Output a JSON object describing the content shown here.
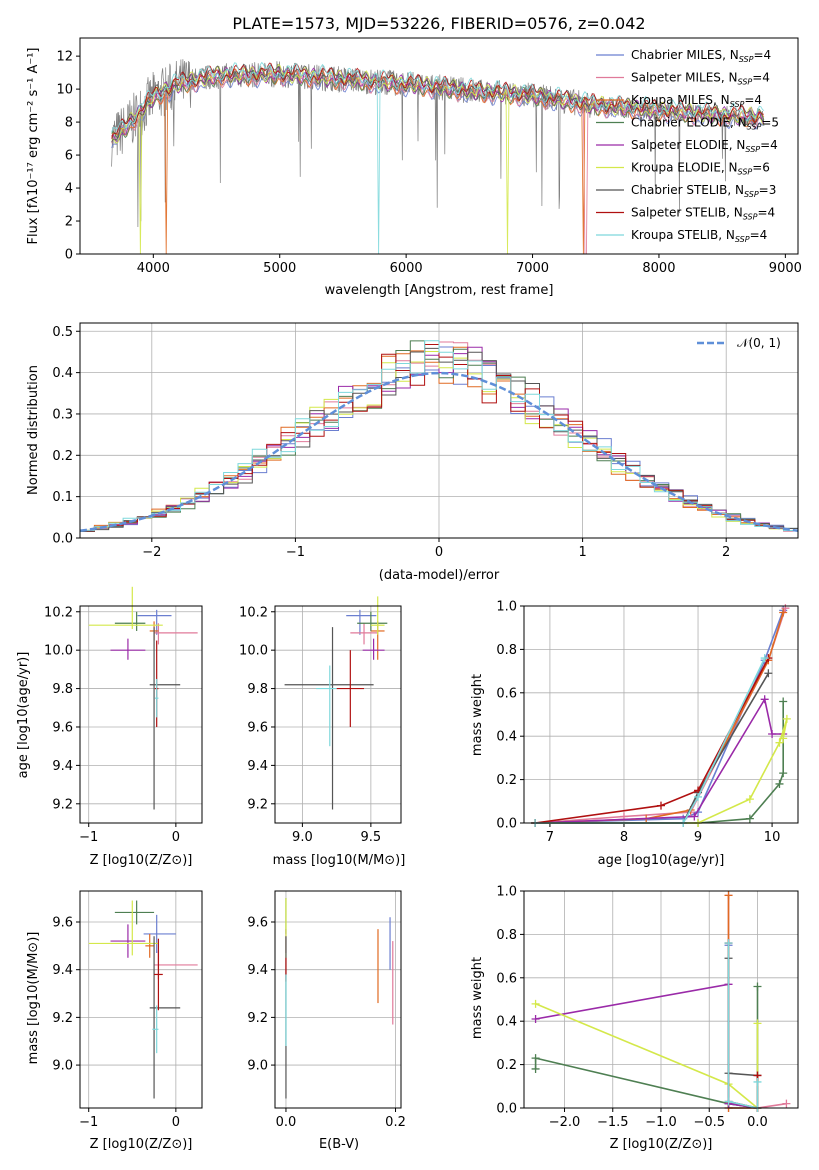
{
  "colors": {
    "Chabrier MILES": "#6b7fd0",
    "Salpeter MILES": "#e07a9a",
    "Kroupa MILES": "#e06a22",
    "Chabrier ELODIE": "#4e7f52",
    "Salpeter ELODIE": "#9a2aa8",
    "Kroupa ELODIE": "#d4e84a",
    "Chabrier STELIB": "#555555",
    "Salpeter STELIB": "#b01010",
    "Kroupa STELIB": "#7ed8dc",
    "normal": "#5f8fd8"
  },
  "spectrum_plot": {
    "title": "PLATE=1573, MJD=53226, FIBERID=0576, z=0.042",
    "xlabel": "wavelength [Angstrom, rest frame]",
    "ylabel": "Flux [fλ10⁻¹⁷ erg cm⁻² s⁻¹ A⁻¹]",
    "xticks": [
      4000,
      5000,
      6000,
      7000,
      8000,
      9000
    ],
    "yticks": [
      0,
      2,
      4,
      6,
      8,
      10,
      12
    ],
    "legend": [
      "Chabrier MILES, N_SSP=4",
      "Salpeter MILES, N_SSP=4",
      "Kroupa MILES, N_SSP=4",
      "Chabrier ELODIE, N_SSP=5",
      "Salpeter ELODIE, N_SSP=4",
      "Kroupa ELODIE, N_SSP=6",
      "Chabrier STELIB, N_SSP=3",
      "Salpeter STELIB, N_SSP=4",
      "Kroupa STELIB, N_SSP=4"
    ],
    "legend_position": "top-right"
  },
  "residual_plot": {
    "xlabel": "(data-model)/error",
    "ylabel": "Normed distribution",
    "xticks": [
      -2,
      -1,
      0,
      1,
      2
    ],
    "yticks": [
      0.0,
      0.1,
      0.2,
      0.3,
      0.4,
      0.5
    ],
    "legend": "𝒩(0, 1)",
    "legend_position": "top-right"
  },
  "panel_age_z": {
    "xlabel": "Z [log10(Z/Z⊙)]",
    "ylabel": "age  [log10(age/yr)]",
    "xticks": [
      -1,
      0
    ],
    "yticks": [
      9.2,
      9.4,
      9.6,
      9.8,
      10.0,
      10.2
    ]
  },
  "panel_age_mass": {
    "xlabel": "mass [log10(M/M⊙)]",
    "xticks": [
      9.0,
      9.5
    ],
    "yticks": [
      9.2,
      9.4,
      9.6,
      9.8,
      10.0,
      10.2
    ]
  },
  "panel_weight_age": {
    "xlabel": "age  [log10(age/yr)]",
    "ylabel": "mass weight",
    "xticks": [
      7,
      8,
      9,
      10
    ],
    "yticks": [
      0.0,
      0.2,
      0.4,
      0.6,
      0.8,
      1.0
    ]
  },
  "panel_mass_z": {
    "xlabel": "Z [log10(Z/Z⊙)]",
    "ylabel": "mass [log10(M/M⊙)]",
    "xticks": [
      -1,
      0
    ],
    "yticks": [
      9.0,
      9.2,
      9.4,
      9.6
    ]
  },
  "panel_mass_ebv": {
    "xlabel": "E(B-V)",
    "xticks": [
      0.0,
      0.2
    ],
    "yticks": [
      9.0,
      9.2,
      9.4,
      9.6
    ]
  },
  "panel_weight_z": {
    "xlabel": "Z [log10(Z/Z⊙)]",
    "ylabel": "mass weight",
    "xticks": [
      -2.0,
      -1.5,
      -1.0,
      -0.5,
      0.0
    ],
    "yticks": [
      0.0,
      0.2,
      0.4,
      0.6,
      0.8,
      1.0
    ]
  },
  "chart_data": [
    {
      "type": "line",
      "title": "PLATE=1573, MJD=53226, FIBERID=0576, z=0.042",
      "xlabel": "wavelength [Angstrom, rest frame]",
      "xlim": [
        3420,
        9100
      ],
      "ylim": [
        0,
        13.1
      ],
      "grid": false,
      "continuum_approx": {
        "x": [
          3670,
          3800,
          4000,
          4200,
          4500,
          5000,
          5500,
          6000,
          6500,
          7000,
          7500,
          8000,
          8500,
          8830
        ],
        "y": [
          6.9,
          7.8,
          9.5,
          10.3,
          10.8,
          10.9,
          10.6,
          10.3,
          9.9,
          9.6,
          9.0,
          8.7,
          8.4,
          8.3
        ]
      },
      "series_order": [
        "Chabrier MILES",
        "Salpeter MILES",
        "Kroupa MILES",
        "Chabrier ELODIE",
        "Salpeter ELODIE",
        "Kroupa ELODIE",
        "Chabrier STELIB",
        "Salpeter STELIB",
        "Kroupa STELIB"
      ]
    },
    {
      "type": "line",
      "xlabel": "(data-model)/error",
      "ylabel": "Normed distribution",
      "xlim": [
        -2.5,
        2.5
      ],
      "ylim": [
        0,
        0.52
      ],
      "grid": true,
      "normal": {
        "mean": 0,
        "sigma": 1,
        "style": "dashed"
      },
      "histogram_bin_width": 0.1
    },
    {
      "type": "scatter",
      "xlabel": "Z [log10(Z/Z⊙)]",
      "ylabel": "age  [log10(age/yr)]",
      "xlim": [
        -1.1,
        0.3
      ],
      "ylim": [
        9.1,
        10.23
      ],
      "grid": true,
      "points": [
        {
          "name": "Chabrier MILES",
          "x": -0.22,
          "y": 10.18,
          "xerr": [
            0.22,
            0.17
          ],
          "yerr": [
            0.1,
            0.03
          ]
        },
        {
          "name": "Salpeter MILES",
          "x": -0.2,
          "y": 10.09,
          "xerr": [
            0.05,
            0.45
          ],
          "yerr": [
            0.06,
            0.05
          ]
        },
        {
          "name": "Kroupa MILES",
          "x": -0.25,
          "y": 10.1,
          "xerr": [
            0.05,
            0.05
          ],
          "yerr": [
            0.05,
            0.05
          ]
        },
        {
          "name": "Chabrier ELODIE",
          "x": -0.45,
          "y": 10.14,
          "xerr": [
            0.25,
            0.1
          ],
          "yerr": [
            0.04,
            0.06
          ]
        },
        {
          "name": "Salpeter ELODIE",
          "x": -0.55,
          "y": 10.0,
          "xerr": [
            0.2,
            0.2
          ],
          "yerr": [
            0.05,
            0.06
          ]
        },
        {
          "name": "Kroupa ELODIE",
          "x": -0.5,
          "y": 10.13,
          "xerr": [
            0.5,
            0.35
          ],
          "yerr": [
            0.02,
            0.2
          ]
        },
        {
          "name": "Chabrier STELIB",
          "x": -0.25,
          "y": 9.82,
          "xerr": [
            0.05,
            0.3
          ],
          "yerr": [
            0.65,
            0.3
          ]
        },
        {
          "name": "Salpeter STELIB",
          "x": -0.22,
          "y": 9.8,
          "xerr": [
            0.02,
            0.02
          ],
          "yerr": [
            0.2,
            0.25
          ]
        },
        {
          "name": "Kroupa STELIB",
          "x": -0.22,
          "y": 9.75,
          "xerr": [
            0.02,
            0.02
          ],
          "yerr": [
            0.1,
            0.1
          ]
        }
      ]
    },
    {
      "type": "scatter",
      "xlabel": "mass [log10(M/M⊙)]",
      "xlim": [
        8.8,
        9.72
      ],
      "ylim": [
        9.1,
        10.23
      ],
      "grid": true,
      "points": [
        {
          "name": "Chabrier MILES",
          "x": 9.42,
          "y": 10.18,
          "xerr": [
            0.1,
            0.12
          ],
          "yerr": [
            0.1,
            0.03
          ]
        },
        {
          "name": "Salpeter MILES",
          "x": 9.45,
          "y": 10.09,
          "xerr": [
            0.1,
            0.1
          ],
          "yerr": [
            0.06,
            0.05
          ]
        },
        {
          "name": "Kroupa MILES",
          "x": 9.55,
          "y": 10.1,
          "xerr": [
            0.05,
            0.05
          ],
          "yerr": [
            0.15,
            0.05
          ]
        },
        {
          "name": "Chabrier ELODIE",
          "x": 9.5,
          "y": 10.14,
          "xerr": [
            0.1,
            0.12
          ],
          "yerr": [
            0.04,
            0.06
          ]
        },
        {
          "name": "Salpeter ELODIE",
          "x": 9.52,
          "y": 10.0,
          "xerr": [
            0.08,
            0.08
          ],
          "yerr": [
            0.05,
            0.06
          ]
        },
        {
          "name": "Kroupa ELODIE",
          "x": 9.55,
          "y": 10.13,
          "xerr": [
            0.05,
            0.05
          ],
          "yerr": [
            0.05,
            0.15
          ]
        },
        {
          "name": "Chabrier STELIB",
          "x": 9.22,
          "y": 9.82,
          "xerr": [
            0.35,
            0.3
          ],
          "yerr": [
            0.65,
            0.3
          ]
        },
        {
          "name": "Salpeter STELIB",
          "x": 9.35,
          "y": 9.8,
          "xerr": [
            0.1,
            0.1
          ],
          "yerr": [
            0.2,
            0.2
          ]
        },
        {
          "name": "Kroupa STELIB",
          "x": 9.2,
          "y": 9.8,
          "xerr": [
            0.1,
            0.05
          ],
          "yerr": [
            0.3,
            0.12
          ]
        }
      ]
    },
    {
      "type": "line",
      "xlabel": "age  [log10(age/yr)]",
      "ylabel": "mass weight",
      "xlim": [
        6.65,
        10.35
      ],
      "ylim": [
        0,
        1.0
      ],
      "grid": true,
      "series": [
        {
          "name": "Chabrier MILES",
          "x": [
            6.8,
            8.8,
            9.0,
            9.9,
            10.15
          ],
          "y": [
            0.0,
            0.02,
            0.05,
            0.75,
            0.98
          ]
        },
        {
          "name": "Salpeter MILES",
          "x": [
            6.8,
            8.0,
            8.9,
            9.95,
            10.18
          ],
          "y": [
            0.0,
            0.03,
            0.05,
            0.75,
            0.99
          ]
        },
        {
          "name": "Kroupa MILES",
          "x": [
            6.8,
            8.3,
            8.9,
            9.95,
            10.15
          ],
          "y": [
            0.0,
            0.02,
            0.06,
            0.75,
            0.97
          ]
        },
        {
          "name": "Chabrier ELODIE",
          "x": [
            6.8,
            9.0,
            9.7,
            10.1,
            10.15,
            10.15
          ],
          "y": [
            0.0,
            0.0,
            0.02,
            0.18,
            0.23,
            0.56
          ]
        },
        {
          "name": "Salpeter ELODIE",
          "x": [
            6.8,
            8.95,
            9.9,
            10.0,
            10.15
          ],
          "y": [
            0.0,
            0.03,
            0.57,
            0.41,
            0.41
          ]
        },
        {
          "name": "Kroupa ELODIE",
          "x": [
            6.8,
            9.0,
            9.7,
            10.1,
            10.2,
            10.15
          ],
          "y": [
            0.0,
            0.0,
            0.11,
            0.37,
            0.48,
            0.39
          ]
        },
        {
          "name": "Chabrier STELIB",
          "x": [
            6.8,
            8.8,
            9.0,
            9.95
          ],
          "y": [
            0.0,
            0.0,
            0.14,
            0.69
          ]
        },
        {
          "name": "Salpeter STELIB",
          "x": [
            6.8,
            8.5,
            9.0,
            9.95
          ],
          "y": [
            0.0,
            0.08,
            0.15,
            0.76
          ]
        },
        {
          "name": "Kroupa STELIB",
          "x": [
            6.8,
            8.8,
            9.0,
            9.9
          ],
          "y": [
            0.0,
            0.0,
            0.12,
            0.76
          ]
        }
      ]
    },
    {
      "type": "scatter",
      "xlabel": "Z [log10(Z/Z⊙)]",
      "ylabel": "mass [log10(M/M⊙)]",
      "xlim": [
        -1.1,
        0.3
      ],
      "ylim": [
        8.82,
        9.73
      ],
      "grid": true,
      "points": [
        {
          "name": "Chabrier MILES",
          "x": -0.22,
          "y": 9.55,
          "xerr": [
            0.15,
            0.22
          ],
          "yerr": [
            0.08,
            0.08
          ]
        },
        {
          "name": "Salpeter MILES",
          "x": -0.2,
          "y": 9.42,
          "xerr": [
            0.05,
            0.45
          ],
          "yerr": [
            0.06,
            0.06
          ]
        },
        {
          "name": "Kroupa MILES",
          "x": -0.3,
          "y": 9.5,
          "xerr": [
            0.05,
            0.05
          ],
          "yerr": [
            0.05,
            0.05
          ]
        },
        {
          "name": "Chabrier ELODIE",
          "x": -0.45,
          "y": 9.64,
          "xerr": [
            0.25,
            0.2
          ],
          "yerr": [
            0.05,
            0.05
          ]
        },
        {
          "name": "Salpeter ELODIE",
          "x": -0.55,
          "y": 9.52,
          "xerr": [
            0.2,
            0.2
          ],
          "yerr": [
            0.07,
            0.07
          ]
        },
        {
          "name": "Kroupa ELODIE",
          "x": -0.5,
          "y": 9.51,
          "xerr": [
            0.5,
            0.3
          ],
          "yerr": [
            0.05,
            0.18
          ]
        },
        {
          "name": "Chabrier STELIB",
          "x": -0.25,
          "y": 9.24,
          "xerr": [
            0.05,
            0.3
          ],
          "yerr": [
            0.38,
            0.3
          ]
        },
        {
          "name": "Salpeter STELIB",
          "x": -0.2,
          "y": 9.38,
          "xerr": [
            0.05,
            0.05
          ],
          "yerr": [
            0.15,
            0.15
          ]
        },
        {
          "name": "Kroupa STELIB",
          "x": -0.22,
          "y": 9.15,
          "xerr": [
            0.05,
            0.02
          ],
          "yerr": [
            0.1,
            0.1
          ]
        }
      ]
    },
    {
      "type": "scatter",
      "xlabel": "E(B-V)",
      "xlim": [
        -0.02,
        0.21
      ],
      "ylim": [
        8.82,
        9.73
      ],
      "grid": true,
      "points": [
        {
          "name": "Chabrier MILES",
          "x": 0.19,
          "y": 9.52,
          "yerr": [
            0.12,
            0.1
          ]
        },
        {
          "name": "Salpeter MILES",
          "x": 0.195,
          "y": 9.37,
          "yerr": [
            0.2,
            0.15
          ]
        },
        {
          "name": "Kroupa MILES",
          "x": 0.168,
          "y": 9.42,
          "yerr": [
            0.16,
            0.15
          ]
        },
        {
          "name": "Chabrier ELODIE",
          "x": 0.0,
          "y": 9.6,
          "yerr": [
            0.05,
            0.1
          ]
        },
        {
          "name": "Salpeter ELODIE",
          "x": 0.0,
          "y": 9.52,
          "yerr": [
            0.05,
            0.05
          ]
        },
        {
          "name": "Kroupa ELODIE",
          "x": 0.0,
          "y": 9.55,
          "yerr": [
            0.1,
            0.15
          ]
        },
        {
          "name": "Chabrier STELIB",
          "x": 0.0,
          "y": 9.24,
          "yerr": [
            0.38,
            0.3
          ]
        },
        {
          "name": "Salpeter STELIB",
          "x": 0.0,
          "y": 9.4,
          "yerr": [
            0.05,
            0.05
          ]
        },
        {
          "name": "Kroupa STELIB",
          "x": 0.0,
          "y": 9.18,
          "yerr": [
            0.1,
            0.2
          ]
        }
      ]
    },
    {
      "type": "line",
      "xlabel": "Z [log10(Z/Z⊙)]",
      "ylabel": "mass weight",
      "xlim": [
        -2.42,
        0.42
      ],
      "ylim": [
        0,
        1.0
      ],
      "grid": true,
      "series": [
        {
          "name": "Chabrier MILES",
          "x": [
            -0.3,
            -0.3,
            0.0
          ],
          "y": [
            0.75,
            0.02,
            0.0
          ]
        },
        {
          "name": "Salpeter MILES",
          "x": [
            -0.3,
            -0.3,
            0.0,
            0.3
          ],
          "y": [
            0.98,
            0.0,
            0.0,
            0.02
          ]
        },
        {
          "name": "Kroupa MILES",
          "x": [
            -0.3,
            -0.3,
            0.0
          ],
          "y": [
            0.98,
            0.0,
            0.0
          ]
        },
        {
          "name": "Chabrier ELODIE",
          "x": [
            -2.3,
            -2.3,
            -0.3,
            0.0,
            0.0
          ],
          "y": [
            0.18,
            0.23,
            0.02,
            0.0,
            0.56
          ]
        },
        {
          "name": "Salpeter ELODIE",
          "x": [
            -2.3,
            -0.3,
            -0.3,
            0.0
          ],
          "y": [
            0.41,
            0.57,
            0.02,
            0.0
          ]
        },
        {
          "name": "Kroupa ELODIE",
          "x": [
            -2.3,
            -0.3,
            0.0,
            0.0
          ],
          "y": [
            0.48,
            0.11,
            0.0,
            0.39
          ]
        },
        {
          "name": "Chabrier STELIB",
          "x": [
            -0.3,
            -0.3,
            0.0
          ],
          "y": [
            0.69,
            0.16,
            0.15
          ]
        },
        {
          "name": "Salpeter STELIB",
          "x": [
            -0.3,
            -0.3,
            0.0,
            0.0
          ],
          "y": [
            0.76,
            0.03,
            0.0,
            0.15
          ]
        },
        {
          "name": "Kroupa STELIB",
          "x": [
            -0.3,
            -0.3,
            0.0,
            0.0
          ],
          "y": [
            0.76,
            0.03,
            0.0,
            0.12
          ]
        }
      ]
    }
  ]
}
